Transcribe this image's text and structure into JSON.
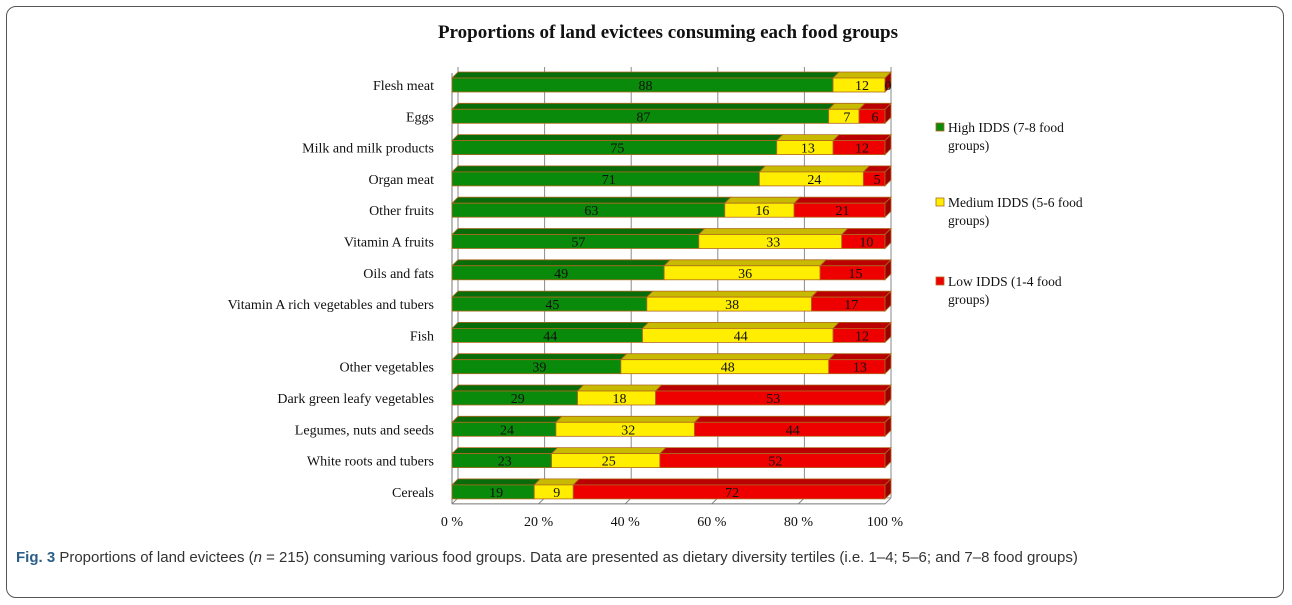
{
  "chart_data": {
    "type": "bar",
    "orientation": "horizontal",
    "stacked": true,
    "percent": true,
    "title": "Proportions of land evictees consuming each food groups",
    "categories": [
      "Flesh meat",
      "Eggs",
      "Milk and milk products",
      "Organ meat",
      "Other fruits",
      "Vitamin A fruits",
      "Oils and fats",
      "Vitamin A rich vegetables and tubers",
      "Fish",
      "Other vegetables",
      "Dark green leafy vegetables",
      "Legumes, nuts and seeds",
      "White roots and tubers",
      "Cereals"
    ],
    "series": [
      {
        "name": "High IDDS (7-8 food groups)",
        "legend_lines": [
          "High IDDS (7-8 food",
          "groups)"
        ],
        "color": "#0a8a0a",
        "values": [
          88,
          87,
          75,
          71,
          63,
          57,
          49,
          45,
          44,
          39,
          29,
          24,
          23,
          19
        ]
      },
      {
        "name": "Medium IDDS (5-6 food groups)",
        "legend_lines": [
          "Medium IDDS (5-6 food",
          "groups)"
        ],
        "color": "#ffee00",
        "values": [
          12,
          7,
          13,
          24,
          16,
          33,
          36,
          38,
          44,
          48,
          18,
          32,
          25,
          9
        ]
      },
      {
        "name": "Low IDDS (1-4 food groups)",
        "legend_lines": [
          "Low IDDS (1-4 food",
          "groups)"
        ],
        "color": "#ee0000",
        "values": [
          0,
          6,
          12,
          5,
          21,
          10,
          15,
          17,
          12,
          13,
          53,
          44,
          52,
          72
        ]
      }
    ],
    "x_ticks": [
      "0 %",
      "20 %",
      "40 %",
      "60 %",
      "80 %",
      "100 %"
    ],
    "xlim": [
      0,
      100
    ],
    "grid": true,
    "legend_position": "right"
  },
  "caption": {
    "label": "Fig. 3",
    "text_before_n": " Proportions of land evictees (",
    "n_symbol": "n",
    "text_after_n": " = 215) consuming various food groups. Data are presented as dietary diversity tertiles (i.e. 1–4; 5–6; and 7–8 food groups)"
  }
}
